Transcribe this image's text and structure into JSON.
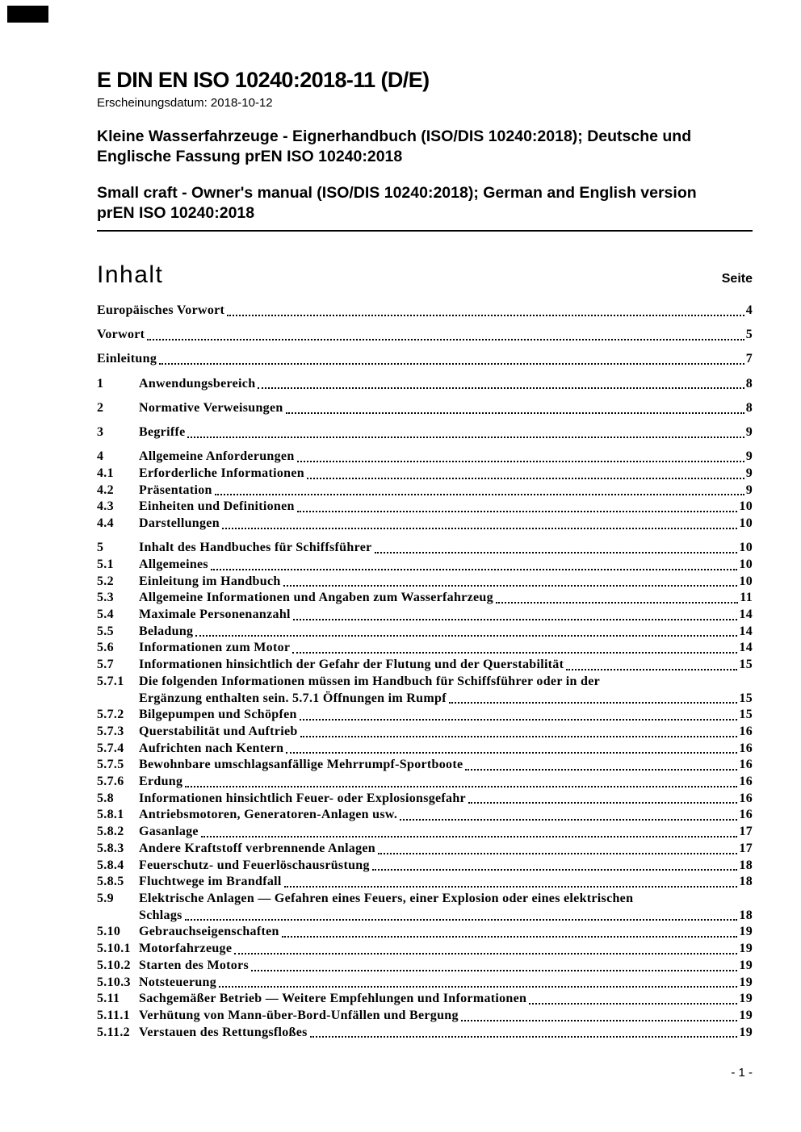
{
  "colors": {
    "text": "#000000",
    "background": "#ffffff",
    "redaction": "#000000"
  },
  "header": {
    "title": "E DIN EN ISO 10240:2018-11 (D/E)",
    "publication_date": "Erscheinungsdatum: 2018-10-12",
    "title_de_lines": [
      "Kleine Wasserfahrzeuge - Eignerhandbuch (ISO/DIS 10240:2018); Deutsche und",
      "Englische Fassung prEN ISO 10240:2018"
    ],
    "title_en_lines": [
      "Small craft - Owner's manual (ISO/DIS 10240:2018); German and English version",
      "prEN ISO 10240:2018"
    ]
  },
  "toc": {
    "heading": "Inhalt",
    "page_column_label": "Seite",
    "rows": [
      {
        "num": "",
        "text": "Europäisches Vorwort",
        "page": "4",
        "gap": false
      },
      {
        "num": "",
        "text": "Vorwort",
        "page": "5",
        "gap": true
      },
      {
        "num": "",
        "text": "Einleitung",
        "page": "7",
        "gap": true
      },
      {
        "num": "1",
        "text": "Anwendungsbereich",
        "page": "8",
        "gap": true
      },
      {
        "num": "2",
        "text": "Normative Verweisungen",
        "page": "8",
        "gap": true
      },
      {
        "num": "3",
        "text": "Begriffe",
        "page": "9",
        "gap": true
      },
      {
        "num": "4",
        "text": "Allgemeine Anforderungen",
        "page": "9",
        "gap": true
      },
      {
        "num": "4.1",
        "text": "Erforderliche Informationen",
        "page": "9",
        "gap": false
      },
      {
        "num": "4.2",
        "text": "Präsentation",
        "page": "9",
        "gap": false
      },
      {
        "num": "4.3",
        "text": "Einheiten und Definitionen",
        "page": "10",
        "gap": false
      },
      {
        "num": "4.4",
        "text": "Darstellungen",
        "page": "10",
        "gap": false
      },
      {
        "num": "5",
        "text": "Inhalt des Handbuches für Schiffsführer",
        "page": "10",
        "gap": true
      },
      {
        "num": "5.1",
        "text": "Allgemeines",
        "page": "10",
        "gap": false
      },
      {
        "num": "5.2",
        "text": "Einleitung im Handbuch",
        "page": "10",
        "gap": false
      },
      {
        "num": "5.3",
        "text": "Allgemeine Informationen und Angaben zum Wasserfahrzeug",
        "page": "11",
        "gap": false
      },
      {
        "num": "5.4",
        "text": "Maximale Personenanzahl",
        "page": "14",
        "gap": false
      },
      {
        "num": "5.5",
        "text": "Beladung",
        "page": "14",
        "gap": false
      },
      {
        "num": "5.6",
        "text": "Informationen zum Motor",
        "page": "14",
        "gap": false
      },
      {
        "num": "5.7",
        "text": "Informationen hinsichtlich der Gefahr der Flutung und der Querstabilität",
        "page": "15",
        "gap": false
      },
      {
        "num": "5.7.1",
        "text": "Die folgenden Informationen müssen im Handbuch für Schiffsführer oder in der",
        "text2": "Ergänzung enthalten sein. 5.7.1 Öffnungen im Rumpf",
        "page": "15",
        "gap": false
      },
      {
        "num": "5.7.2",
        "text": "Bilgepumpen und Schöpfen",
        "page": "15",
        "gap": false
      },
      {
        "num": "5.7.3",
        "text": "Querstabilität und Auftrieb",
        "page": "16",
        "gap": false
      },
      {
        "num": "5.7.4",
        "text": "Aufrichten nach Kentern",
        "page": "16",
        "gap": false
      },
      {
        "num": "5.7.5",
        "text": "Bewohnbare umschlagsanfällige Mehrrumpf-Sportboote",
        "page": "16",
        "gap": false
      },
      {
        "num": "5.7.6",
        "text": "Erdung",
        "page": "16",
        "gap": false
      },
      {
        "num": "5.8",
        "text": "Informationen hinsichtlich Feuer- oder Explosionsgefahr",
        "page": "16",
        "gap": false
      },
      {
        "num": "5.8.1",
        "text": "Antriebsmotoren, Generatoren-Anlagen usw.",
        "page": "16",
        "gap": false
      },
      {
        "num": "5.8.2",
        "text": "Gasanlage",
        "page": "17",
        "gap": false
      },
      {
        "num": "5.8.3",
        "text": "Andere Kraftstoff verbrennende Anlagen",
        "page": "17",
        "gap": false
      },
      {
        "num": "5.8.4",
        "text": "Feuerschutz- und Feuerlöschausrüstung",
        "page": "18",
        "gap": false
      },
      {
        "num": "5.8.5",
        "text": "Fluchtwege im Brandfall",
        "page": "18",
        "gap": false
      },
      {
        "num": "5.9",
        "text": "Elektrische Anlagen — Gefahren eines Feuers, einer Explosion oder eines elektrischen",
        "text2": "Schlags",
        "page": "18",
        "gap": false
      },
      {
        "num": "5.10",
        "text": "Gebrauchseigenschaften",
        "page": "19",
        "gap": false
      },
      {
        "num": "5.10.1",
        "text": "Motorfahrzeuge",
        "page": "19",
        "gap": false
      },
      {
        "num": "5.10.2",
        "text": "Starten des Motors",
        "page": "19",
        "gap": false
      },
      {
        "num": "5.10.3",
        "text": "Notsteuerung",
        "page": "19",
        "gap": false
      },
      {
        "num": "5.11",
        "text": "Sachgemäßer Betrieb — Weitere Empfehlungen und Informationen",
        "page": "19",
        "gap": false
      },
      {
        "num": "5.11.1",
        "text": "Verhütung von Mann-über-Bord-Unfällen und Bergung",
        "page": "19",
        "gap": false
      },
      {
        "num": "5.11.2",
        "text": "Verstauen des Rettungsfloßes",
        "page": "19",
        "gap": false
      }
    ]
  },
  "footer": {
    "page_number": "- 1 -"
  }
}
